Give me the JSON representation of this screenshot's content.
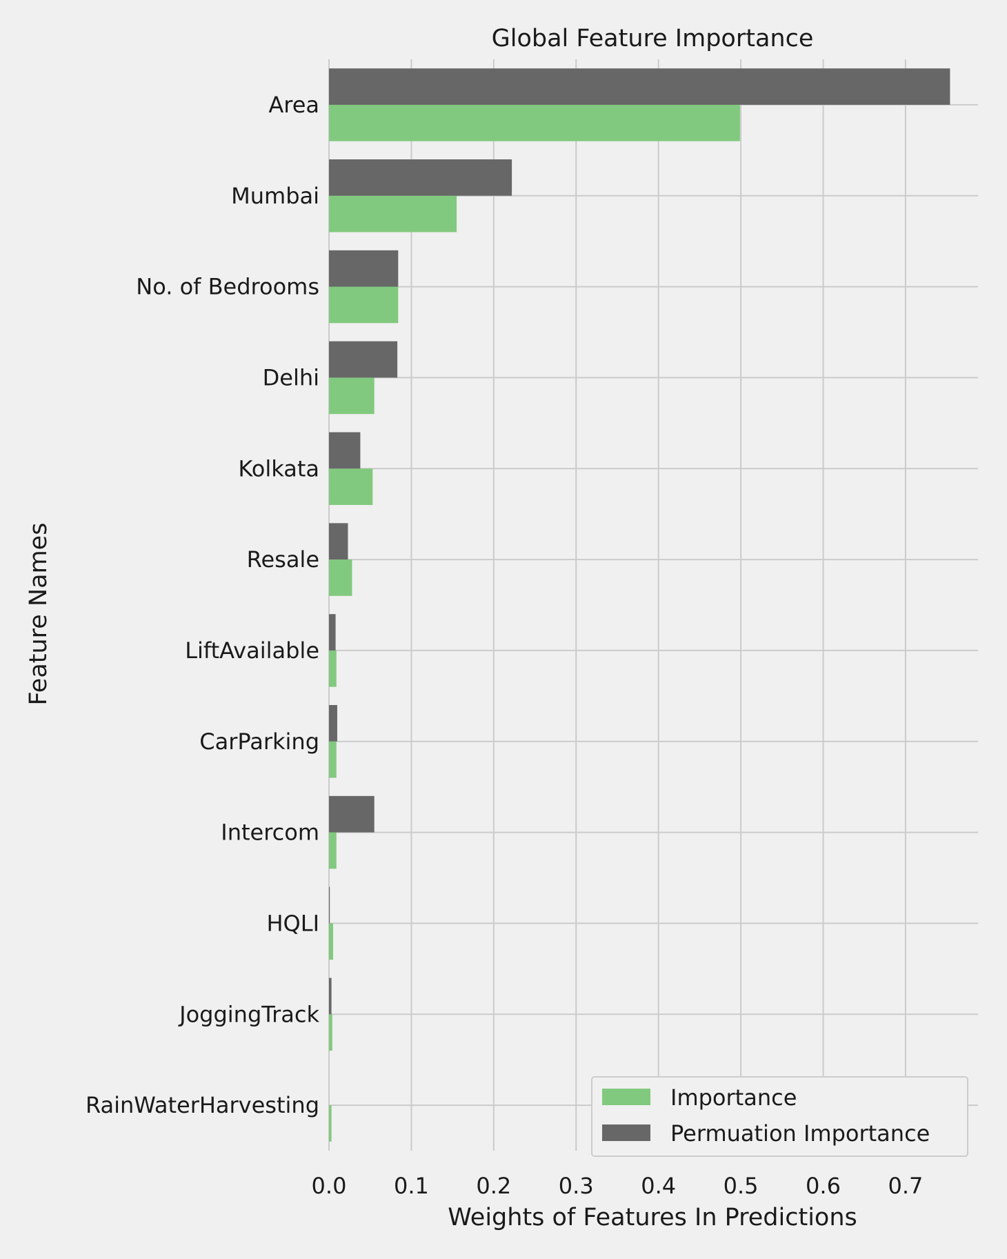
{
  "chart_data": {
    "type": "bar",
    "orientation": "horizontal",
    "title": "Global Feature Importance",
    "xlabel": "Weights of Features In Predictions",
    "ylabel": "Feature Names",
    "categories": [
      "Area",
      "Mumbai",
      "No. of Bedrooms",
      "Delhi",
      "Kolkata",
      "Resale",
      "LiftAvailable",
      "CarParking",
      "Intercom",
      "HQLI",
      "JoggingTrack",
      "RainWaterHarvesting"
    ],
    "series": [
      {
        "name": "Importance",
        "color": "#81c97e",
        "values": [
          0.499,
          0.155,
          0.084,
          0.055,
          0.053,
          0.028,
          0.009,
          0.009,
          0.009,
          0.005,
          0.004,
          0.003
        ]
      },
      {
        "name": "Permuation Importance",
        "color": "#676767",
        "values": [
          0.754,
          0.222,
          0.084,
          0.083,
          0.038,
          0.023,
          0.008,
          0.01,
          0.055,
          0.001,
          0.003,
          0.0
        ]
      }
    ],
    "xticks": [
      "0.0",
      "0.1",
      "0.2",
      "0.3",
      "0.4",
      "0.5",
      "0.6",
      "0.7"
    ],
    "xlim": [
      0,
      0.788
    ],
    "grid": true,
    "legend_position": "bottom-right"
  }
}
